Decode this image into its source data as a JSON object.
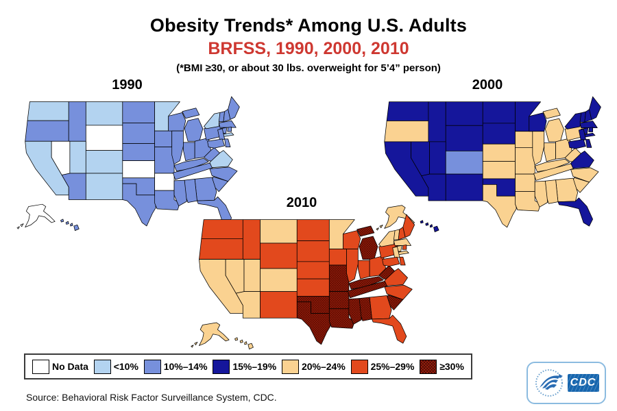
{
  "header": {
    "title": "Obesity Trends* Among U.S. Adults",
    "subtitle": "BRFSS, 1990, 2000, 2010",
    "subtitle_color": "#CE3831",
    "note": "(*BMI ≥30, or about 30 lbs. overweight for 5’4” person)"
  },
  "footer": {
    "source": "Source: Behavioral Risk Factor Surveillance System, CDC."
  },
  "cdc": {
    "label": "CDC"
  },
  "chart_data": {
    "type": "heatmap",
    "subtype": "choropleth-us-states",
    "title": "Obesity Trends* Among U.S. Adults",
    "unit": "percent of adults with BMI ≥30",
    "legend_position": "bottom",
    "categories": [
      {
        "key": "no_data",
        "label": "No Data",
        "color": "#FFFFFF"
      },
      {
        "key": "lt10",
        "label": "<10%",
        "color": "#B3D3F0"
      },
      {
        "key": "p10_14",
        "label": "10%–14%",
        "color": "#7790DC"
      },
      {
        "key": "p15_19",
        "label": "15%–19%",
        "color": "#15169B"
      },
      {
        "key": "p20_24",
        "label": "20%–24%",
        "color": "#FAD291"
      },
      {
        "key": "p25_29",
        "label": "25%–29%",
        "color": "#E2491D"
      },
      {
        "key": "ge30",
        "label": "≥30%",
        "color": "#A0210E",
        "pattern": "crosshatch"
      }
    ],
    "years": [
      {
        "label": "1990",
        "states_by_category": {
          "no_data": [
            "AK",
            "AR",
            "KS",
            "NV",
            "WY"
          ],
          "lt10": [
            "CA",
            "CO",
            "MN",
            "MT",
            "NM",
            "NY",
            "UT",
            "VA",
            "WA"
          ],
          "p10_14": [
            "AL",
            "AZ",
            "CT",
            "DC",
            "DE",
            "FL",
            "GA",
            "HI",
            "IA",
            "ID",
            "IL",
            "IN",
            "KY",
            "LA",
            "MA",
            "MD",
            "ME",
            "MI",
            "MO",
            "MS",
            "NC",
            "ND",
            "NE",
            "NH",
            "NJ",
            "OH",
            "OK",
            "OR",
            "PA",
            "RI",
            "SC",
            "SD",
            "TN",
            "TX",
            "VT",
            "WI",
            "WV"
          ]
        }
      },
      {
        "label": "2000",
        "states_by_category": {
          "p10_14": [
            "CO"
          ],
          "p15_19": [
            "AZ",
            "CA",
            "CT",
            "DC",
            "DE",
            "FL",
            "HI",
            "ID",
            "MA",
            "MD",
            "ME",
            "MN",
            "MT",
            "ND",
            "NH",
            "NJ",
            "NM",
            "NV",
            "NY",
            "OK",
            "RI",
            "SD",
            "UT",
            "VA",
            "VT",
            "WA",
            "WI",
            "WY"
          ],
          "p20_24": [
            "AK",
            "AL",
            "AR",
            "GA",
            "IA",
            "IL",
            "IN",
            "KS",
            "KY",
            "LA",
            "MI",
            "MO",
            "MS",
            "NC",
            "NE",
            "OH",
            "OR",
            "PA",
            "SC",
            "TN",
            "TX",
            "WV"
          ]
        }
      },
      {
        "label": "2010",
        "states_by_category": {
          "p20_24": [
            "AK",
            "AZ",
            "CA",
            "CO",
            "CT",
            "DC",
            "HI",
            "MA",
            "MN",
            "MT",
            "NJ",
            "NV",
            "NY",
            "UT",
            "VT"
          ],
          "p25_29": [
            "DE",
            "FL",
            "GA",
            "IA",
            "ID",
            "IL",
            "IN",
            "KS",
            "MD",
            "ME",
            "NC",
            "ND",
            "NE",
            "NH",
            "NM",
            "OH",
            "OR",
            "PA",
            "RI",
            "SD",
            "VA",
            "WA",
            "WI",
            "WY"
          ],
          "ge30": [
            "AL",
            "AR",
            "KY",
            "LA",
            "MI",
            "MO",
            "MS",
            "OK",
            "SC",
            "TN",
            "TX",
            "WV"
          ]
        }
      }
    ]
  }
}
